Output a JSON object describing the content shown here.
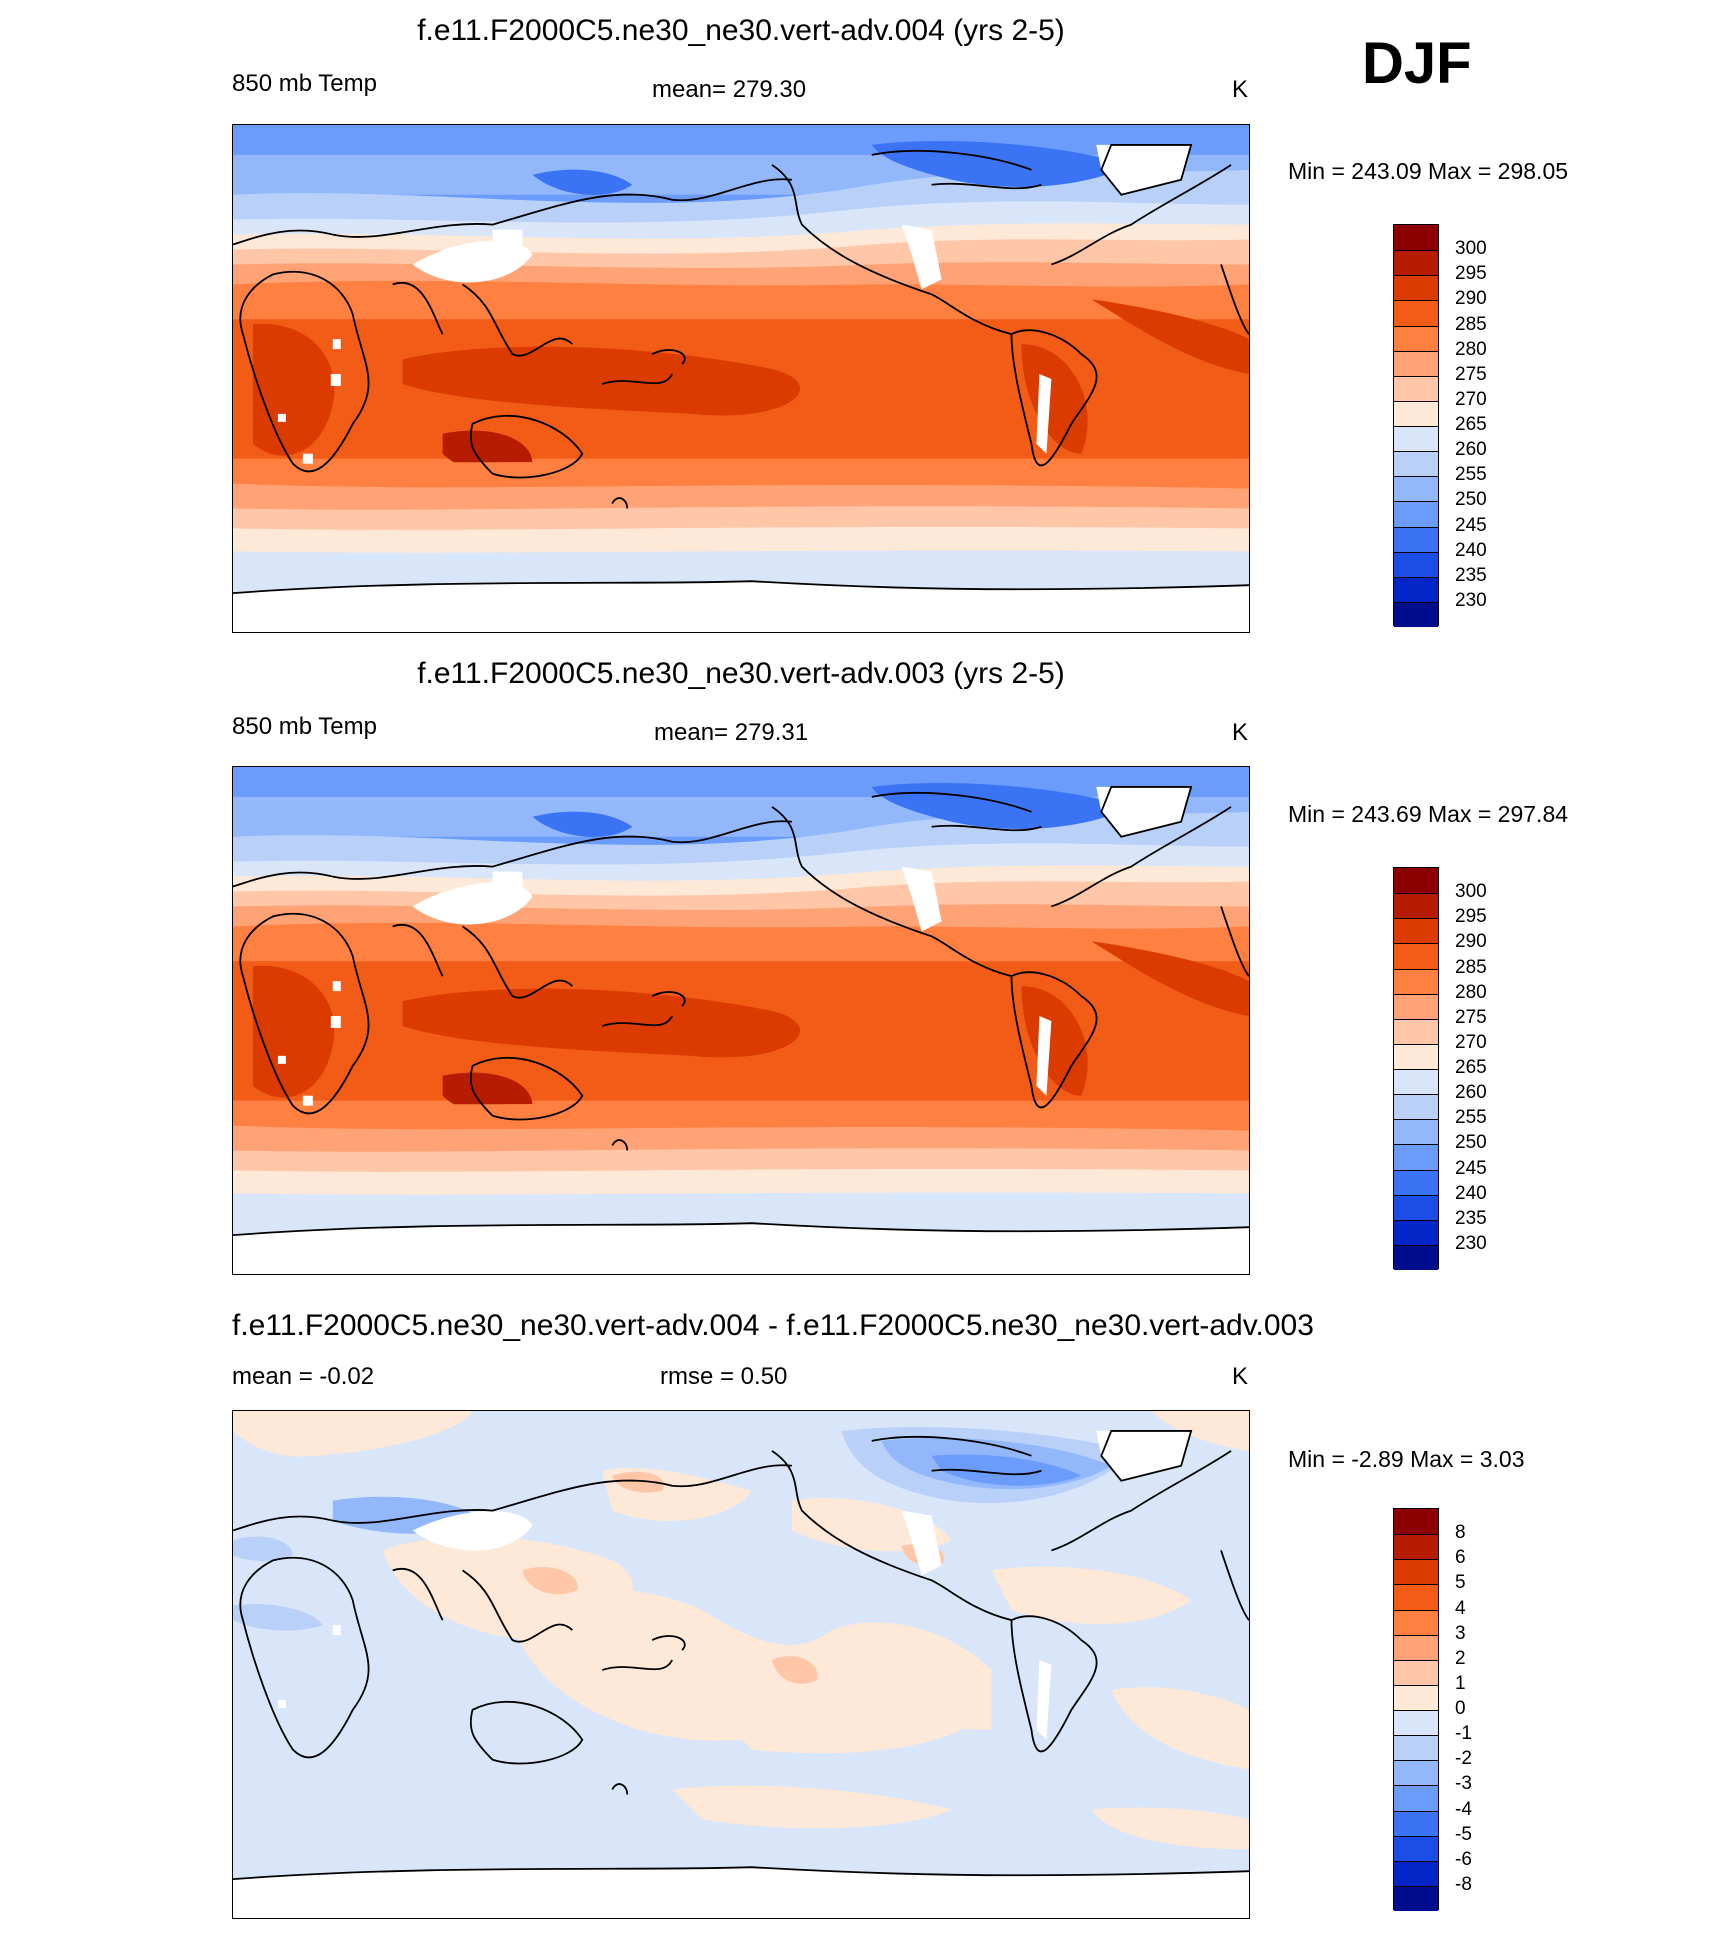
{
  "season": "DJF",
  "temp_levels": [
    "300",
    "295",
    "290",
    "285",
    "280",
    "275",
    "270",
    "265",
    "260",
    "255",
    "250",
    "245",
    "240",
    "235",
    "230"
  ],
  "temp_colors": [
    "#8c0000",
    "#b51c00",
    "#dc3b00",
    "#f25c16",
    "#ff8040",
    "#ffa276",
    "#ffc6a8",
    "#fee8d8",
    "#d9e6f9",
    "#b9d1f8",
    "#93b7fb",
    "#6b9bfb",
    "#3b73f5",
    "#1b4ee6",
    "#0426c8",
    "#000d8c"
  ],
  "diff_levels": [
    "8",
    "6",
    "5",
    "4",
    "3",
    "2",
    "1",
    "0",
    "-1",
    "-2",
    "-3",
    "-4",
    "-5",
    "-6",
    "-8"
  ],
  "diff_colors": [
    "#8c0000",
    "#b51c00",
    "#dc3b00",
    "#f25c16",
    "#ff8040",
    "#ffa276",
    "#ffc6a8",
    "#fee8d8",
    "#d9e6f9",
    "#b9d1f8",
    "#93b7fb",
    "#6b9bfb",
    "#3b73f5",
    "#1b4ee6",
    "#0426c8",
    "#000d8c"
  ],
  "panels": [
    {
      "title": "f.e11.F2000C5.ne30_ne30.vert-adv.004 (yrs 2-5)",
      "left_label": "850 mb Temp",
      "center_label": "mean= 279.30",
      "units": "K",
      "minmax": "Min = 243.09 Max = 298.05"
    },
    {
      "title": "f.e11.F2000C5.ne30_ne30.vert-adv.003 (yrs 2-5)",
      "left_label": "850 mb Temp",
      "center_label": "mean= 279.31",
      "units": "K",
      "minmax": "Min = 243.69 Max = 297.84"
    },
    {
      "title": "f.e11.F2000C5.ne30_ne30.vert-adv.004 - f.e11.F2000C5.ne30_ne30.vert-adv.003",
      "left_label": "mean =  -0.02",
      "center_label": "rmse =   0.50",
      "units": "K",
      "minmax": "Min =  -2.89 Max =   3.03"
    }
  ]
}
